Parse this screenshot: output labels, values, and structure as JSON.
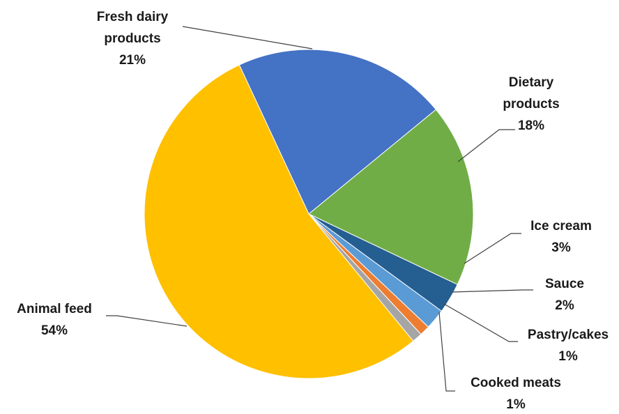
{
  "chart_data": {
    "type": "pie",
    "slices": [
      {
        "label_lines": [
          "Fresh dairy",
          "products"
        ],
        "pct_text": "21%",
        "value": 21,
        "color": "#4472C4"
      },
      {
        "label_lines": [
          "Dietary",
          "products"
        ],
        "pct_text": "18%",
        "value": 18,
        "color": "#70AD47"
      },
      {
        "label_lines": [
          "Ice cream"
        ],
        "pct_text": "3%",
        "value": 3,
        "color": "#255E91"
      },
      {
        "label_lines": [
          "Sauce"
        ],
        "pct_text": "2%",
        "value": 2,
        "color": "#5B9BD5"
      },
      {
        "label_lines": [
          "Pastry/cakes"
        ],
        "pct_text": "1%",
        "value": 1,
        "color": "#ED7D31"
      },
      {
        "label_lines": [
          "Cooked meats"
        ],
        "pct_text": "1%",
        "value": 1,
        "color": "#A5A5A5"
      },
      {
        "label_lines": [
          "Animal feed"
        ],
        "pct_text": "54%",
        "value": 54,
        "color": "#FFC000"
      }
    ],
    "start_angle_deg": -25,
    "title": ""
  }
}
